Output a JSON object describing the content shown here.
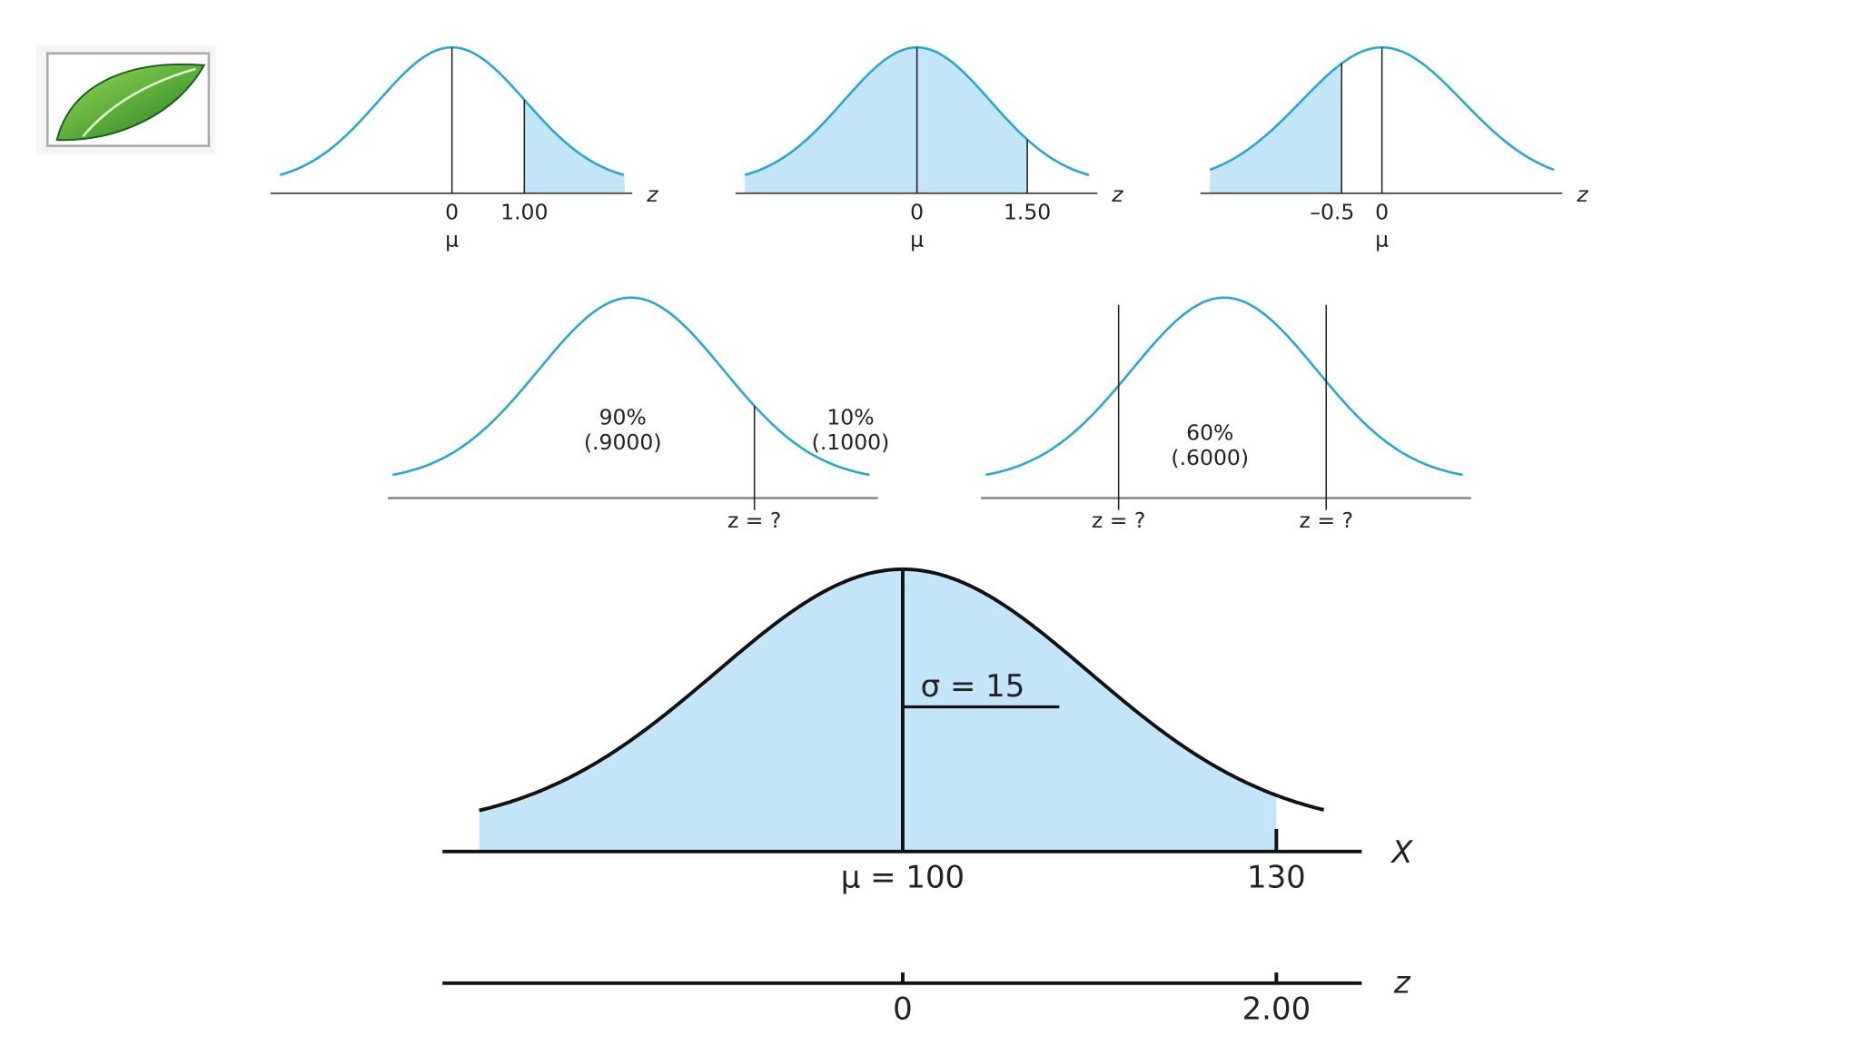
{
  "top_row": [
    {
      "tick_labels": [
        "0",
        "1.00"
      ],
      "mean_label": "μ",
      "axis_label": "z"
    },
    {
      "tick_labels": [
        "0",
        "1.50"
      ],
      "mean_label": "μ",
      "axis_label": "z"
    },
    {
      "tick_labels": [
        "–0.5",
        "0"
      ],
      "mean_label": "μ",
      "axis_label": "z"
    }
  ],
  "middle_row": [
    {
      "area_labels": [
        [
          "90%",
          "(.9000)"
        ],
        [
          "10%",
          "(.1000)"
        ]
      ],
      "cut_labels": [
        "z = ?"
      ]
    },
    {
      "area_labels": [
        [
          "60%",
          "(.6000)"
        ]
      ],
      "cut_labels": [
        "z = ?",
        "z = ?"
      ]
    }
  ],
  "bottom": {
    "sigma_label": "σ = 15",
    "x_axis_label": "X",
    "x_tick_labels": [
      "μ = 100",
      "130"
    ],
    "z_axis_label": "z",
    "z_tick_labels": [
      "0",
      "2.00"
    ]
  }
}
